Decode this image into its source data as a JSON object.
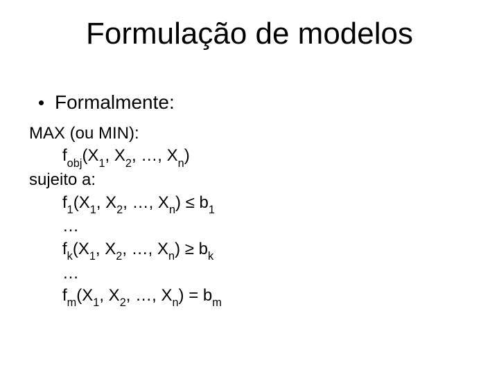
{
  "title": "Formulação de modelos",
  "bullet_label": "Formalmente:",
  "lines": {
    "l1": "MAX (ou MIN):",
    "l2_pre": "f",
    "l2_sub": "obj",
    "l2_post_a": "(X",
    "l2_post_b": ", X",
    "l2_post_c": ", …, X",
    "l2_post_d": ")",
    "s1": "1",
    "s2": "2",
    "sn": "n",
    "l3": "sujeito a:",
    "l4_pre": "f",
    "l4_sub": "1",
    "l4_mid_a": "(X",
    "l4_mid_b": ", X",
    "l4_mid_c": ", …, X",
    "l4_mid_d": ") ",
    "le": "≤",
    "ge": "≥",
    "eq": "=",
    "sp": " b",
    "b1": "1",
    "ell": "…",
    "fk_sub": "k",
    "bk": "k",
    "fm_sub": "m",
    "bm": "m"
  },
  "colors": {
    "text": "#000000",
    "background": "#ffffff"
  },
  "fonts": {
    "family": "Comic Sans MS",
    "title_size_pt": 44,
    "bullet_size_pt": 28,
    "body_size_pt": 24
  }
}
